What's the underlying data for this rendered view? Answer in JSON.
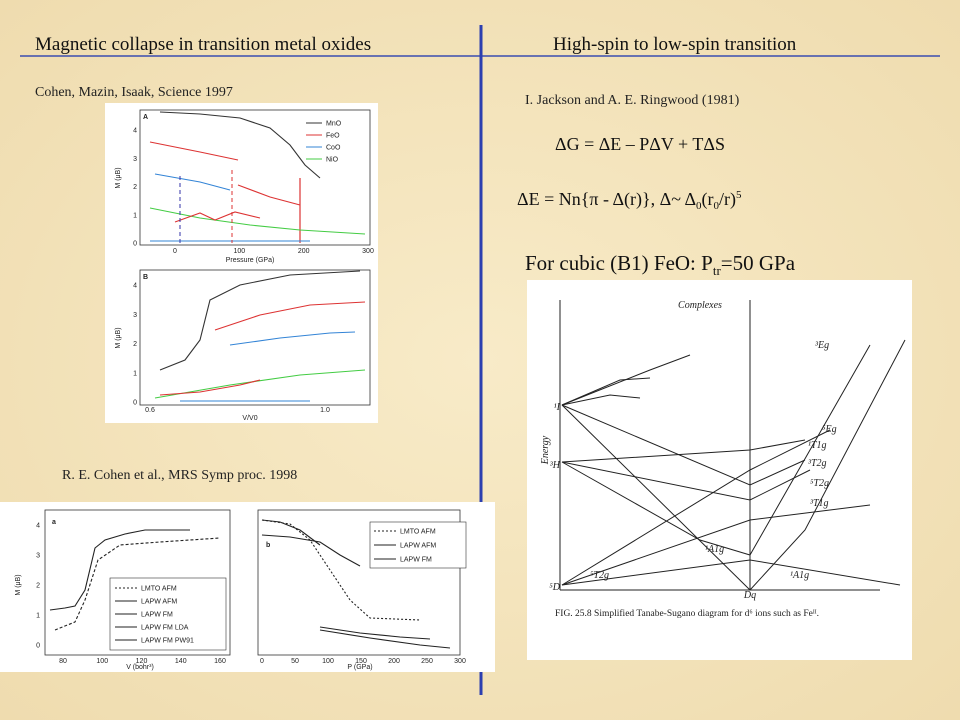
{
  "header": {
    "left": "Magnetic collapse  in transition  metal oxides",
    "right": "High-spin to low-spin transition"
  },
  "left": {
    "citation1": "Cohen, Mazin, Isaak, Science 1997",
    "figure1": {
      "panel_a": {
        "label": "A",
        "ylabel": "M (μB)",
        "xlabel": "Pressure (GPa)",
        "yticks": [
          "0",
          "1",
          "2",
          "3",
          "4"
        ],
        "xticks": [
          "0",
          "100",
          "200",
          "300"
        ],
        "legend": [
          "MnO",
          "FeO",
          "CoO",
          "NiO"
        ]
      },
      "panel_b": {
        "label": "B",
        "ylabel": "M (μB)",
        "xlabel": "V/V0",
        "yticks": [
          "0",
          "1",
          "2",
          "3",
          "4"
        ],
        "xticks": [
          "0.6",
          "1.0"
        ]
      }
    },
    "citation2": "R. E. Cohen et al., MRS Symp proc. 1998",
    "figure2": {
      "panel_a": {
        "label": "a",
        "ylabel": "M (μB)",
        "xlabel": "V (bohr³)",
        "yticks": [
          "0",
          "1",
          "2",
          "3",
          "4"
        ],
        "xticks": [
          "80",
          "100",
          "120",
          "140",
          "160"
        ],
        "legend": [
          "LMTO AFM",
          "LAPW AFM",
          "LAPW FM",
          "LAPW FM LDA",
          "LAPW FM PW91"
        ]
      },
      "panel_b": {
        "label": "b",
        "xlabel": "P (GPa)",
        "xticks": [
          "0",
          "50",
          "100",
          "150",
          "200",
          "250",
          "300"
        ],
        "legend": [
          "LMTO AFM",
          "LAPW AFM",
          "LAPW FM"
        ]
      }
    }
  },
  "right": {
    "citation": "I. Jackson and A. E. Ringwood (1981)",
    "equation1": "ΔG = ΔE – PΔV + TΔS",
    "equation2": [
      "ΔE = Nn{π - Δ(r)},  Δ~ Δ",
      "0",
      "(r",
      "0",
      "/r)",
      "5"
    ],
    "statement": [
      "For cubic (B1) FeO:  P",
      "tr",
      "=50 GPa"
    ],
    "figure3": {
      "title": "Complexes",
      "ylabel": "Energy",
      "xlabel": "Dq",
      "terms_left": [
        "¹I",
        "³H",
        "⁵D"
      ],
      "terms_right": [
        "³Eg",
        "⁵Eg",
        "¹T1g",
        "³T2g",
        "⁵T2g",
        "³T1g"
      ],
      "terms_bottom": [
        "¹A1g",
        "⁵T2g",
        "¹A1g"
      ],
      "caption": "FIG. 25.8  Simplified Tanabe-Sugano diagram for d⁶ ions such as Feᴵᴵ."
    }
  }
}
